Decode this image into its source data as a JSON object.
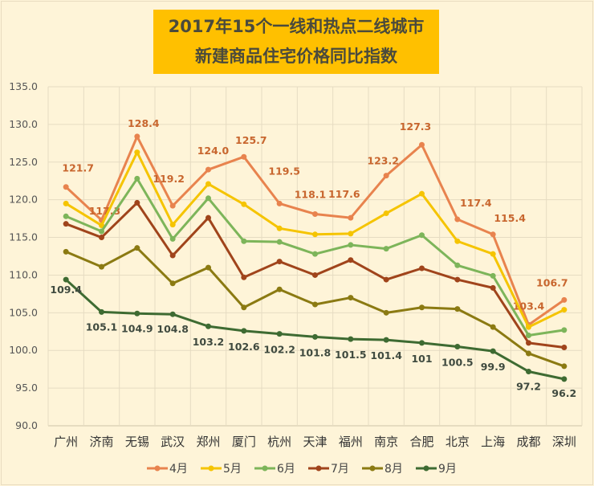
{
  "chart_data": {
    "type": "line",
    "title": "2017年15个一线和热点二线城市",
    "subtitle": "新建商品住宅价格同比指数",
    "categories": [
      "广州",
      "济南",
      "无锡",
      "武汉",
      "郑州",
      "厦门",
      "杭州",
      "天津",
      "福州",
      "南京",
      "合肥",
      "北京",
      "上海",
      "成都",
      "深圳"
    ],
    "ylim": [
      90,
      135
    ],
    "yticks": [
      "90.0",
      "95.0",
      "100.0",
      "105.0",
      "110.0",
      "115.0",
      "120.0",
      "125.0",
      "130.0",
      "135.0"
    ],
    "grid": true,
    "legend_position": "bottom",
    "series": [
      {
        "name": "4月",
        "color": "#E8834E",
        "labeled": true,
        "labels": [
          "121.7",
          "117.3",
          "128.4",
          "119.2",
          "124.0",
          "125.7",
          "119.5",
          "118.1",
          "117.6",
          "123.2",
          "127.3",
          "117.4",
          "115.4",
          "103.4",
          "106.7"
        ],
        "values": [
          121.7,
          117.3,
          128.4,
          119.2,
          124.0,
          125.7,
          119.5,
          118.1,
          117.6,
          123.2,
          127.3,
          117.4,
          115.4,
          103.4,
          106.7
        ]
      },
      {
        "name": "5月",
        "color": "#F5C400",
        "labeled": false,
        "values": [
          119.5,
          116.6,
          126.3,
          116.7,
          122.1,
          119.4,
          116.2,
          115.4,
          115.5,
          118.2,
          120.8,
          114.5,
          112.8,
          103.1,
          105.4
        ]
      },
      {
        "name": "6月",
        "color": "#7DB55A",
        "labeled": false,
        "values": [
          117.8,
          115.8,
          122.8,
          114.8,
          120.2,
          114.5,
          114.4,
          112.8,
          114.0,
          113.5,
          115.3,
          111.3,
          109.9,
          102.0,
          102.7
        ]
      },
      {
        "name": "7月",
        "color": "#A0441B",
        "labeled": false,
        "values": [
          116.8,
          115.0,
          119.6,
          112.6,
          117.6,
          109.7,
          111.8,
          110.0,
          112.0,
          109.4,
          110.9,
          109.4,
          108.3,
          101.0,
          100.4
        ]
      },
      {
        "name": "8月",
        "color": "#8B7A12",
        "labeled": false,
        "values": [
          113.1,
          111.1,
          113.6,
          108.9,
          111.0,
          105.7,
          108.1,
          106.1,
          107.0,
          105.0,
          105.7,
          105.5,
          103.1,
          99.6,
          97.9
        ]
      },
      {
        "name": "9月",
        "color": "#3E6B32",
        "labeled": true,
        "labels": [
          "109.4",
          "105.1",
          "104.9",
          "104.8",
          "103.2",
          "102.6",
          "102.2",
          "101.8",
          "101.5",
          "101.4",
          "101",
          "100.5",
          "99.9",
          "97.2",
          "96.2"
        ],
        "values": [
          109.4,
          105.1,
          104.9,
          104.8,
          103.2,
          102.6,
          102.2,
          101.8,
          101.5,
          101.4,
          101,
          100.5,
          99.9,
          97.2,
          96.2
        ]
      }
    ]
  }
}
